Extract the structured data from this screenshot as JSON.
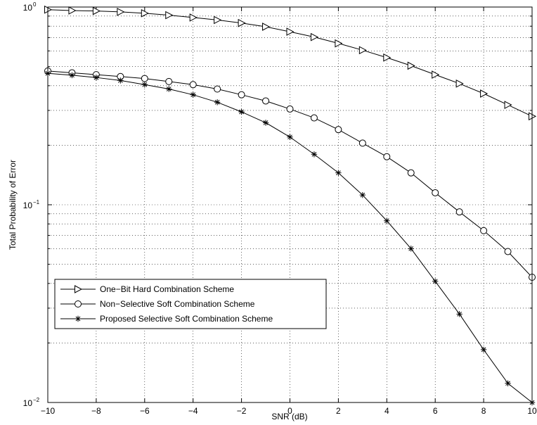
{
  "chart_data": {
    "type": "line",
    "title": "",
    "xlabel": "SNR (dB)",
    "ylabel": "Total Probability of Error",
    "xlim": [
      -10,
      10
    ],
    "ylim": [
      0.01,
      1
    ],
    "yscale": "log",
    "grid": true,
    "legend_position": "bottom-left",
    "x": [
      -10,
      -9,
      -8,
      -7,
      -6,
      -5,
      -4,
      -3,
      -2,
      -1,
      0,
      1,
      2,
      3,
      4,
      5,
      6,
      7,
      8,
      9,
      10
    ],
    "x_ticks": [
      -10,
      -8,
      -6,
      -4,
      -2,
      0,
      2,
      4,
      6,
      8,
      10
    ],
    "x_tick_labels": [
      "−10",
      "−8",
      "−6",
      "−4",
      "−2",
      "0",
      "2",
      "4",
      "6",
      "8",
      "10"
    ],
    "y_ticks": [
      0.01,
      0.1,
      1
    ],
    "y_tick_bases": [
      "10",
      "10",
      "10"
    ],
    "y_tick_exponents": [
      "−2",
      "−1",
      "0"
    ],
    "series": [
      {
        "name": "One−Bit Hard Combination Scheme",
        "marker": "triangle-right",
        "values": [
          0.97,
          0.96,
          0.955,
          0.945,
          0.93,
          0.91,
          0.885,
          0.86,
          0.83,
          0.795,
          0.75,
          0.705,
          0.655,
          0.605,
          0.555,
          0.505,
          0.455,
          0.41,
          0.365,
          0.32,
          0.28
        ]
      },
      {
        "name": "Non−Selective Soft Combination Scheme",
        "marker": "circle",
        "values": [
          0.475,
          0.465,
          0.455,
          0.445,
          0.435,
          0.42,
          0.405,
          0.385,
          0.36,
          0.335,
          0.305,
          0.275,
          0.24,
          0.205,
          0.175,
          0.145,
          0.115,
          0.092,
          0.074,
          0.058,
          0.043
        ]
      },
      {
        "name": "Proposed Selective Soft Combination Scheme",
        "marker": "star",
        "values": [
          0.462,
          0.452,
          0.44,
          0.425,
          0.405,
          0.385,
          0.36,
          0.33,
          0.295,
          0.26,
          0.22,
          0.18,
          0.145,
          0.112,
          0.083,
          0.06,
          0.041,
          0.028,
          0.0185,
          0.0125,
          0.008
        ]
      }
    ]
  }
}
